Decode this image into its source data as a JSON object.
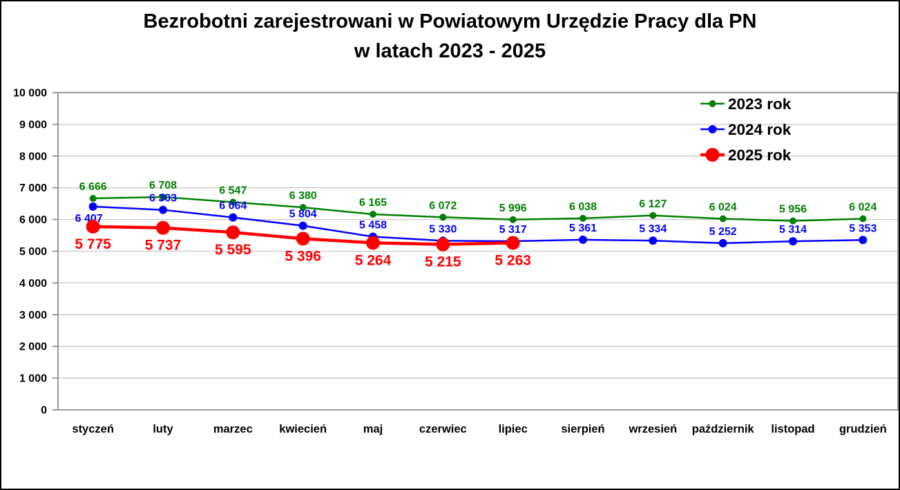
{
  "title": {
    "line1": "Bezrobotni zarejestrowani w Powiatowym Urzędzie Pracy dla PN",
    "line2": "w latach 2023 - 2025"
  },
  "chart_data": {
    "type": "line",
    "title": "Bezrobotni zarejestrowani w Powiatowym Urzędzie Pracy dla PN w latach 2023 - 2025",
    "categories": [
      "styczeń",
      "luty",
      "marzec",
      "kwiecień",
      "maj",
      "czerwiec",
      "lipiec",
      "sierpień",
      "wrzesień",
      "październik",
      "listopad",
      "grudzień"
    ],
    "series": [
      {
        "name": "2023 rok",
        "color": "#008000",
        "values": [
          6666,
          6708,
          6547,
          6380,
          6165,
          6072,
          5996,
          6038,
          6127,
          6024,
          5956,
          6024
        ]
      },
      {
        "name": "2024 rok",
        "color": "#0000FF",
        "values": [
          6407,
          6303,
          6064,
          5804,
          5458,
          5330,
          5317,
          5361,
          5334,
          5252,
          5314,
          5353
        ]
      },
      {
        "name": "2025 rok",
        "color": "#FF0000",
        "values": [
          5775,
          5737,
          5595,
          5396,
          5264,
          5215,
          5263
        ]
      }
    ],
    "xlabel": "",
    "ylabel": "",
    "ylim": [
      0,
      10000
    ],
    "ytick_step": 1000,
    "ytick_labels": [
      "0",
      "1 000",
      "2 000",
      "3 000",
      "4 000",
      "5 000",
      "6 000",
      "7 000",
      "8 000",
      "9 000",
      "10 000"
    ],
    "grid": true,
    "data_labels": true,
    "number_format": "space-thousands",
    "legend_position": "top-right",
    "legend_labels": [
      "2023 rok",
      "2024 rok",
      "2025 rok"
    ]
  },
  "colors": {
    "grid": "#c6c6c6",
    "plot_border": "#808080",
    "text": "#000000",
    "background": "#ffffff"
  }
}
